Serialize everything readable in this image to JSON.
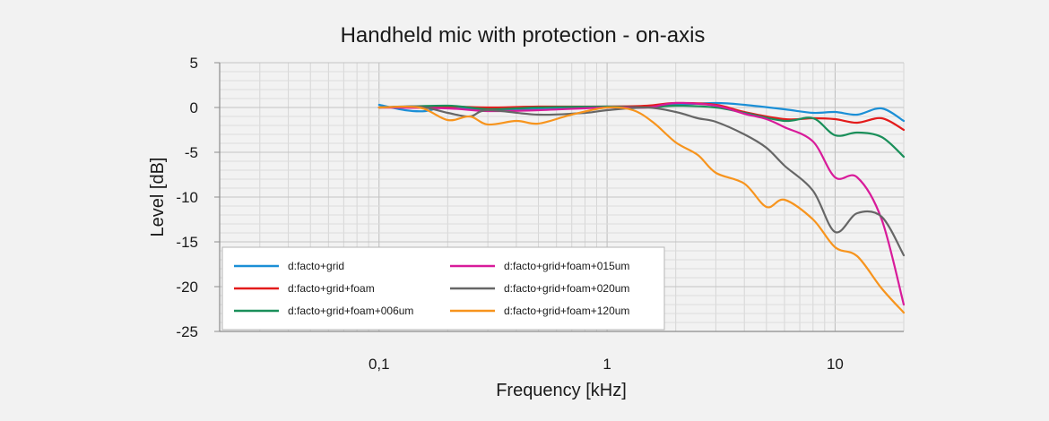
{
  "chart_data": {
    "type": "line",
    "title": "Handheld mic with protection - on-axis",
    "xlabel": "Frequency [kHz]",
    "ylabel": "Level [dB]",
    "xscale": "log",
    "xlim": [
      0.02,
      20
    ],
    "ylim": [
      -25,
      5
    ],
    "x_ticks": [
      {
        "value": 0.1,
        "label": "0,1"
      },
      {
        "value": 1,
        "label": "1"
      },
      {
        "value": 10,
        "label": "10"
      }
    ],
    "y_ticks": [
      {
        "value": 5,
        "label": "5"
      },
      {
        "value": 0,
        "label": "0"
      },
      {
        "value": -5,
        "label": "-5"
      },
      {
        "value": -10,
        "label": "-10"
      },
      {
        "value": -15,
        "label": "-15"
      },
      {
        "value": -20,
        "label": "-20"
      },
      {
        "value": -25,
        "label": "-25"
      }
    ],
    "grid": true,
    "legend_position": "bottom-left",
    "series": [
      {
        "name": "d:facto+grid",
        "color": "#1b8fd6",
        "points": [
          [
            0.1,
            0.3
          ],
          [
            0.13,
            -0.3
          ],
          [
            0.16,
            -0.4
          ],
          [
            0.2,
            0.1
          ],
          [
            0.3,
            -0.3
          ],
          [
            0.5,
            -0.2
          ],
          [
            0.8,
            0.0
          ],
          [
            1.0,
            0.1
          ],
          [
            1.5,
            0.1
          ],
          [
            2.0,
            0.3
          ],
          [
            3.0,
            0.5
          ],
          [
            4.0,
            0.3
          ],
          [
            6.0,
            -0.2
          ],
          [
            8.0,
            -0.6
          ],
          [
            10.0,
            -0.5
          ],
          [
            12.5,
            -0.8
          ],
          [
            16.0,
            -0.1
          ],
          [
            20.0,
            -1.5
          ]
        ]
      },
      {
        "name": "d:facto+grid+foam",
        "color": "#e31b1b",
        "points": [
          [
            0.1,
            0.0
          ],
          [
            0.2,
            0.1
          ],
          [
            0.3,
            0.0
          ],
          [
            0.5,
            0.1
          ],
          [
            1.0,
            0.1
          ],
          [
            1.5,
            0.2
          ],
          [
            2.0,
            0.5
          ],
          [
            3.0,
            0.3
          ],
          [
            4.0,
            -0.5
          ],
          [
            6.0,
            -1.3
          ],
          [
            8.0,
            -1.2
          ],
          [
            10.0,
            -1.3
          ],
          [
            12.5,
            -1.7
          ],
          [
            16.0,
            -1.2
          ],
          [
            20.0,
            -2.5
          ]
        ]
      },
      {
        "name": "d:facto+grid+foam+006um",
        "color": "#1a8f5a",
        "points": [
          [
            0.1,
            0.0
          ],
          [
            0.2,
            0.2
          ],
          [
            0.3,
            -0.2
          ],
          [
            0.5,
            0.0
          ],
          [
            1.0,
            0.1
          ],
          [
            1.5,
            0.0
          ],
          [
            2.0,
            0.2
          ],
          [
            3.0,
            0.0
          ],
          [
            4.0,
            -0.6
          ],
          [
            6.0,
            -1.5
          ],
          [
            8.0,
            -1.2
          ],
          [
            10.0,
            -3.1
          ],
          [
            12.5,
            -2.8
          ],
          [
            16.0,
            -3.3
          ],
          [
            20.0,
            -5.5
          ]
        ]
      },
      {
        "name": "d:facto+grid+foam+015um",
        "color": "#d81b9a",
        "points": [
          [
            0.1,
            0.0
          ],
          [
            0.2,
            -0.1
          ],
          [
            0.3,
            -0.4
          ],
          [
            0.5,
            -0.3
          ],
          [
            1.0,
            0.0
          ],
          [
            1.5,
            0.0
          ],
          [
            2.0,
            0.5
          ],
          [
            3.0,
            0.2
          ],
          [
            4.0,
            -0.7
          ],
          [
            5.0,
            -1.3
          ],
          [
            6.0,
            -2.2
          ],
          [
            8.0,
            -3.8
          ],
          [
            10.0,
            -7.8
          ],
          [
            12.5,
            -7.8
          ],
          [
            16.0,
            -12.5
          ],
          [
            20.0,
            -22.0
          ]
        ]
      },
      {
        "name": "d:facto+grid+foam+020um",
        "color": "#666666",
        "points": [
          [
            0.1,
            0.0
          ],
          [
            0.15,
            0.1
          ],
          [
            0.2,
            -0.6
          ],
          [
            0.25,
            -1.0
          ],
          [
            0.3,
            -0.3
          ],
          [
            0.5,
            -0.8
          ],
          [
            0.8,
            -0.6
          ],
          [
            1.0,
            -0.3
          ],
          [
            1.5,
            0.0
          ],
          [
            2.0,
            -0.5
          ],
          [
            2.5,
            -1.2
          ],
          [
            3.0,
            -1.6
          ],
          [
            4.0,
            -3.0
          ],
          [
            5.0,
            -4.5
          ],
          [
            6.0,
            -6.5
          ],
          [
            8.0,
            -9.3
          ],
          [
            10.0,
            -13.9
          ],
          [
            12.5,
            -11.8
          ],
          [
            16.0,
            -12.2
          ],
          [
            20.0,
            -16.5
          ]
        ]
      },
      {
        "name": "d:facto+grid+foam+120um",
        "color": "#f7941d",
        "points": [
          [
            0.1,
            0.0
          ],
          [
            0.15,
            0.0
          ],
          [
            0.2,
            -1.4
          ],
          [
            0.25,
            -1.0
          ],
          [
            0.3,
            -1.9
          ],
          [
            0.4,
            -1.5
          ],
          [
            0.5,
            -1.8
          ],
          [
            0.7,
            -0.8
          ],
          [
            1.0,
            0.0
          ],
          [
            1.3,
            -0.3
          ],
          [
            1.6,
            -1.7
          ],
          [
            2.0,
            -3.9
          ],
          [
            2.5,
            -5.3
          ],
          [
            3.0,
            -7.3
          ],
          [
            4.0,
            -8.5
          ],
          [
            5.0,
            -11.1
          ],
          [
            6.0,
            -10.3
          ],
          [
            8.0,
            -12.5
          ],
          [
            10.0,
            -15.6
          ],
          [
            12.5,
            -16.6
          ],
          [
            16.0,
            -20.2
          ],
          [
            20.0,
            -22.9
          ]
        ]
      }
    ]
  }
}
